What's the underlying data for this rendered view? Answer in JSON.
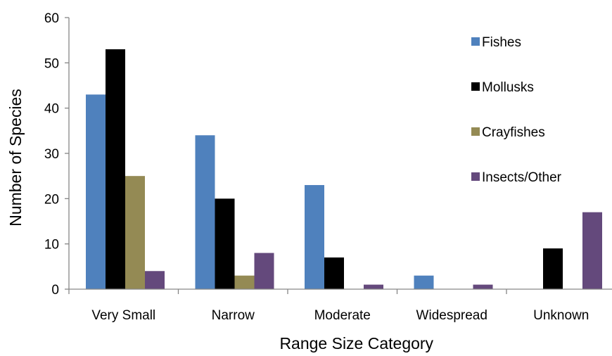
{
  "chart_data": {
    "type": "bar",
    "title": "",
    "xlabel": "Range Size Category",
    "ylabel": "Number of Species",
    "ylim": [
      0,
      60
    ],
    "yticks": [
      0,
      10,
      20,
      30,
      40,
      50,
      60
    ],
    "grid": false,
    "legend_position": "right",
    "categories": [
      "Very Small",
      "Narrow",
      "Moderate",
      "Widespread",
      "Unknown"
    ],
    "series": [
      {
        "name": "Fishes",
        "color": "#4f81bd",
        "values": [
          43,
          34,
          23,
          3,
          0
        ]
      },
      {
        "name": "Mollusks",
        "color": "#000000",
        "values": [
          53,
          20,
          7,
          0,
          9
        ]
      },
      {
        "name": "Crayfishes",
        "color": "#948a54",
        "values": [
          25,
          3,
          0,
          0,
          0
        ]
      },
      {
        "name": "Insects/Other",
        "color": "#64497c",
        "values": [
          4,
          8,
          1,
          1,
          17
        ]
      }
    ]
  }
}
